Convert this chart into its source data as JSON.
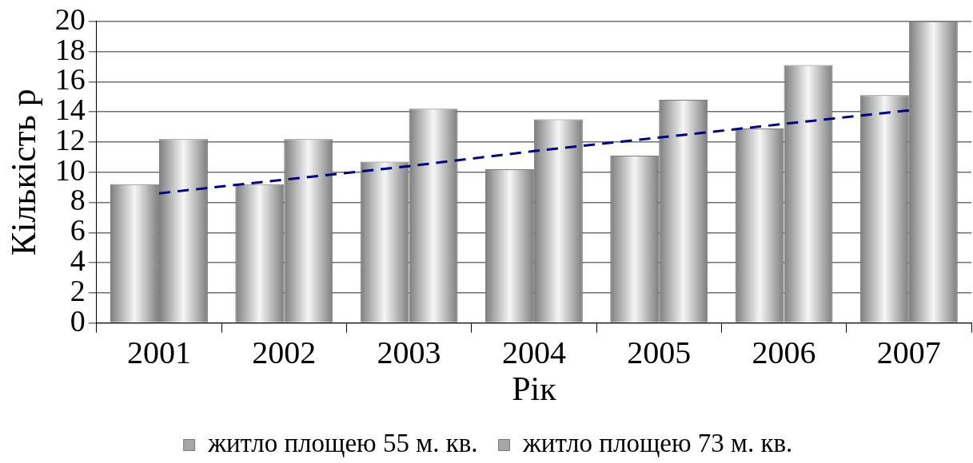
{
  "chart_data": {
    "type": "bar",
    "xlabel": "Рік",
    "ylabel": "Кількість р",
    "categories": [
      "2001",
      "2002",
      "2003",
      "2004",
      "2005",
      "2006",
      "2007"
    ],
    "series": [
      {
        "name": "житло площею 55 м. кв.",
        "color": "#a6a6a6",
        "values": [
          9.2,
          9.2,
          10.7,
          10.2,
          11.1,
          12.9,
          15.1
        ]
      },
      {
        "name": "житло площею 73 м. кв.",
        "color": "#a6a6a6",
        "values": [
          12.2,
          12.2,
          14.2,
          13.5,
          14.8,
          17.1,
          20
        ]
      },
      {
        "type": "line",
        "color": "#000080",
        "line_style": "dashed",
        "marker": "none",
        "values": [
          8.6,
          9.5,
          10.4,
          11.4,
          12.3,
          13.2,
          14.1
        ]
      }
    ],
    "ylim": [
      0,
      20
    ],
    "yticks": [
      0,
      2,
      4,
      6,
      8,
      10,
      12,
      14,
      16,
      18,
      20
    ],
    "grid": "y",
    "legend": "bottom"
  }
}
